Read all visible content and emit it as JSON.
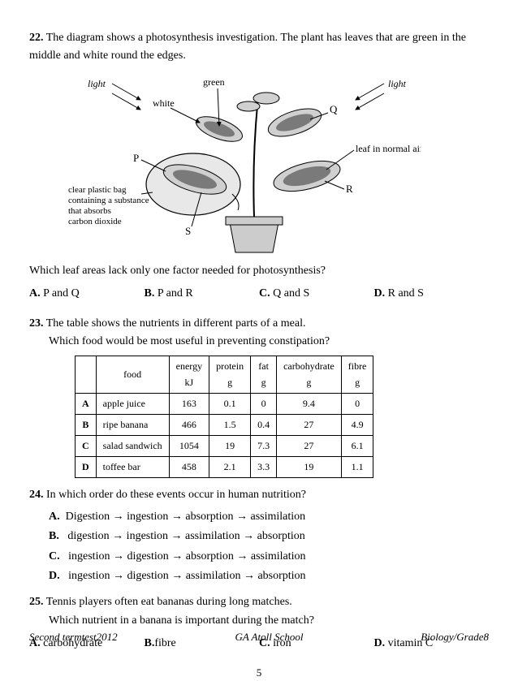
{
  "q22": {
    "num": "22.",
    "text": "The diagram shows a photosynthesis investigation. The plant has leaves that are green in the middle and white round the edges.",
    "prompt": "Which leaf areas lack only one factor needed for photosynthesis?",
    "options": {
      "A": "P and Q",
      "B": "P and R",
      "C": "Q and S",
      "D": "R and S"
    },
    "diagram": {
      "labels": {
        "light_left": "light",
        "light_right": "light",
        "green": "green",
        "white": "white",
        "Q": "Q",
        "P": "P",
        "R": "R",
        "S": "S",
        "leaf_normal": "leaf in normal air",
        "bag_text": "clear plastic bag\ncontaining a substance\nthat absorbs\ncarbon dioxide"
      },
      "colors": {
        "line": "#000000",
        "bagfill": "#e8e8e8",
        "leafdark": "#7a7a7a",
        "leaflight": "#d0d0d0",
        "pot": "#cccccc"
      }
    }
  },
  "q23": {
    "num": "23.",
    "text": "The table shows the nutrients in different parts of a meal.",
    "prompt": "Which food would be most useful in preventing constipation?",
    "table": {
      "columns": [
        "",
        "food",
        "energy\nkJ",
        "protein\ng",
        "fat\ng",
        "carbohydrate\ng",
        "fibre\ng"
      ],
      "rows": [
        [
          "A",
          "apple juice",
          "163",
          "0.1",
          "0",
          "9.4",
          "0"
        ],
        [
          "B",
          "ripe banana",
          "466",
          "1.5",
          "0.4",
          "27",
          "4.9"
        ],
        [
          "C",
          "salad sandwich",
          "1054",
          "19",
          "7.3",
          "27",
          "6.1"
        ],
        [
          "D",
          "toffee bar",
          "458",
          "2.1",
          "3.3",
          "19",
          "1.1"
        ]
      ]
    }
  },
  "q24": {
    "num": "24.",
    "text": "In which order do these events occur in human nutrition?",
    "events": [
      "Digestion → ingestion → absorption → assimilation",
      "digestion → ingestion → assimilation → absorption",
      "ingestion → digestion → absorption → assimilation",
      "ingestion → digestion → assimilation → absorption"
    ],
    "labels": [
      "A.",
      "B.",
      "C.",
      "D."
    ]
  },
  "q25": {
    "num": "25.",
    "text": "Tennis players often eat bananas during long matches.",
    "prompt": "Which nutrient in a banana is important during the match?",
    "options": {
      "A": "carbohydrate",
      "B": "fibre",
      "C": "iron",
      "D": "vitamin C"
    }
  },
  "footer": {
    "left": "Second termtest2012",
    "center": "GA Atoll School",
    "right": "Biology/Grade8",
    "page": "5"
  }
}
